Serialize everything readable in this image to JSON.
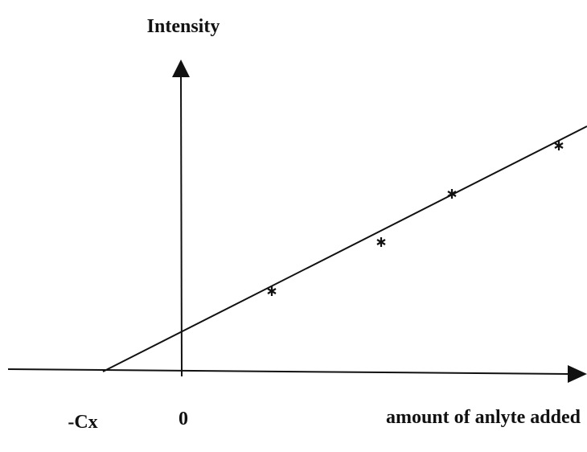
{
  "axes": {
    "y_label": "Intensity",
    "x_label": "amount of anlyte added",
    "origin_label": "0",
    "intercept_label": "-Cx"
  }
}
